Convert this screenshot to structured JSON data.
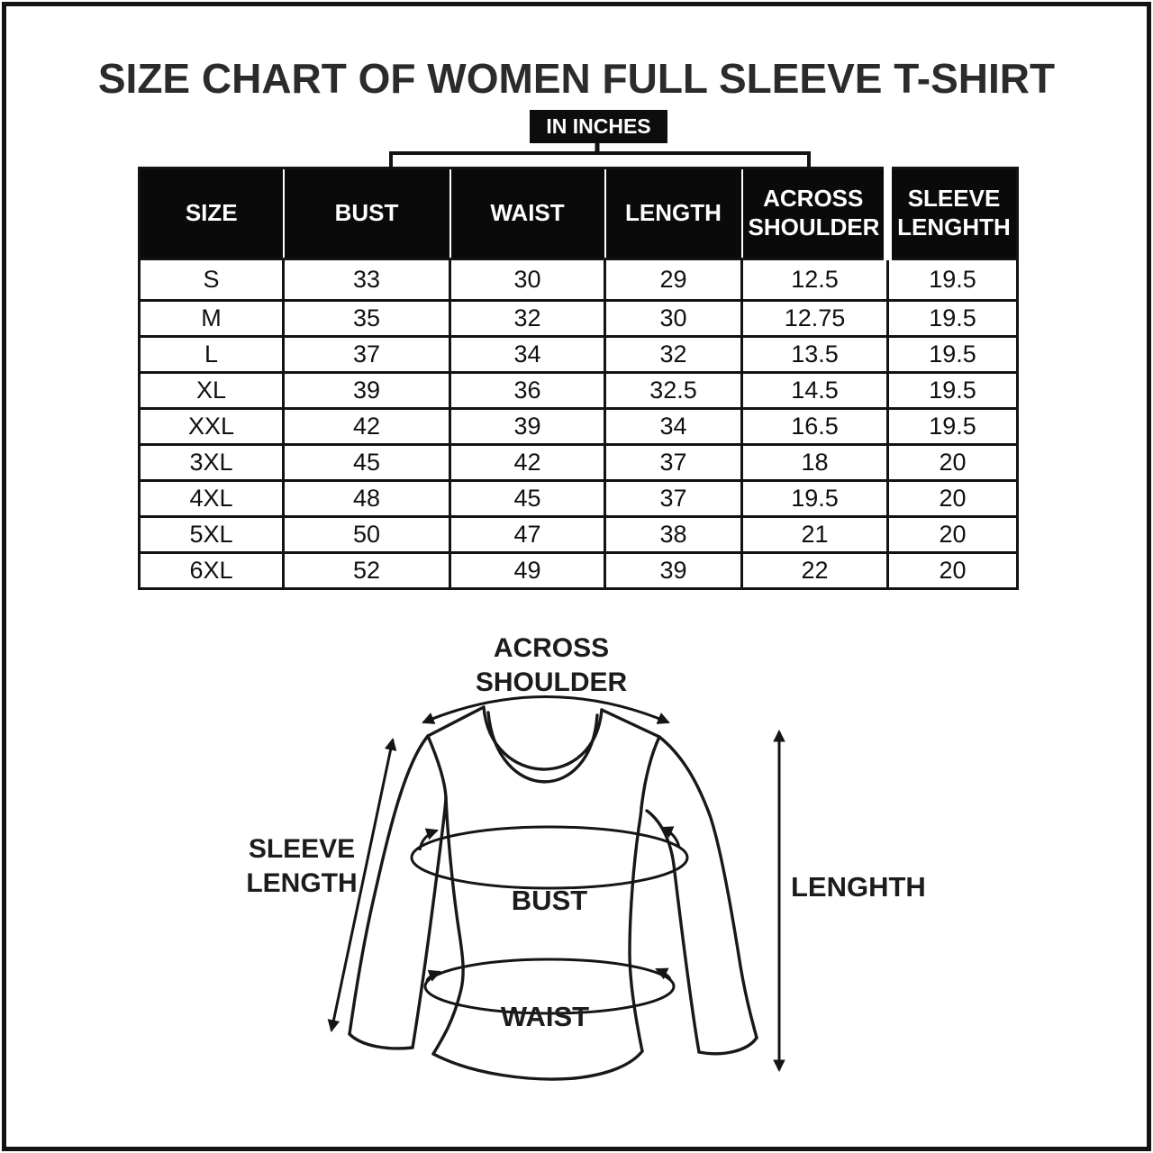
{
  "page": {
    "title": "SIZE CHART OF WOMEN FULL SLEEVE T-SHIRT",
    "unit_badge": "IN INCHES"
  },
  "table": {
    "columns": [
      "SIZE",
      "BUST",
      "WAIST",
      "LENGTH",
      "ACROSS SHOULDER",
      "SLEEVE LENGHTH"
    ],
    "rows": [
      [
        "S",
        "33",
        "30",
        "29",
        "12.5",
        "19.5"
      ],
      [
        "M",
        "35",
        "32",
        "30",
        "12.75",
        "19.5"
      ],
      [
        "L",
        "37",
        "34",
        "32",
        "13.5",
        "19.5"
      ],
      [
        "XL",
        "39",
        "36",
        "32.5",
        "14.5",
        "19.5"
      ],
      [
        "XXL",
        "42",
        "39",
        "34",
        "16.5",
        "19.5"
      ],
      [
        "3XL",
        "45",
        "42",
        "37",
        "18",
        "20"
      ],
      [
        "4XL",
        "48",
        "45",
        "37",
        "19.5",
        "20"
      ],
      [
        "5XL",
        "50",
        "47",
        "38",
        "21",
        "20"
      ],
      [
        "6XL",
        "52",
        "49",
        "39",
        "22",
        "20"
      ]
    ]
  },
  "diagram": {
    "across_shoulder_label": "ACROSS\nSHOULDER",
    "sleeve_length_label": "SLEEVE\nLENGTH",
    "bust_label": "BUST",
    "waist_label": "WAIST",
    "length_label": "LENGHTH"
  },
  "colors": {
    "ink": "#151515",
    "paper": "#ffffff",
    "header_bg": "#0a0a0a",
    "header_text": "#ffffff"
  }
}
